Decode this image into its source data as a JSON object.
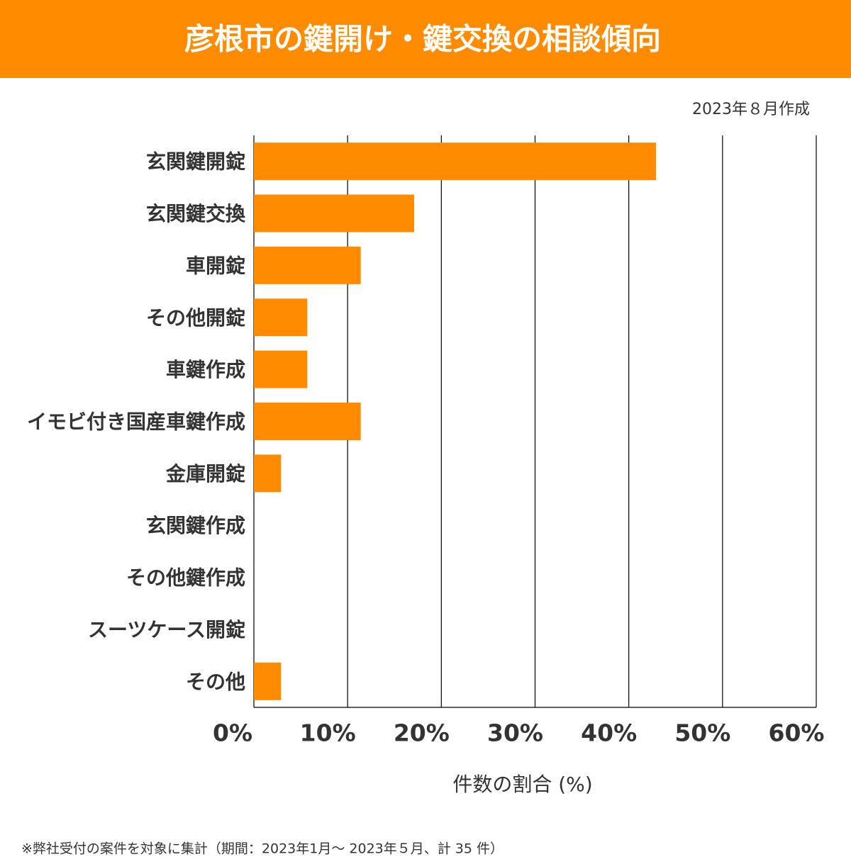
{
  "chart_data": {
    "type": "bar",
    "orientation": "horizontal",
    "title": "彦根市の鍵開け・鍵交換の相談傾向",
    "subtitle": "2023年８月作成",
    "x_label": "件数の割合 (%)",
    "note": "※弊社受付の案件を対象に集計（期間：2023年1月～ 2023年５月、計 35 件）",
    "categories": [
      "玄関鍵開錠",
      "玄関鍵交換",
      "車開錠",
      "その他開錠",
      "車鍵作成",
      "イモビ付き国産車鍵作成",
      "金庫開錠",
      "玄関鍵作成",
      "その他鍵作成",
      "スーツケース開錠",
      "その他"
    ],
    "values": [
      42.9,
      17.1,
      11.4,
      5.7,
      5.7,
      11.4,
      2.9,
      0,
      0,
      0,
      2.9
    ],
    "color": "#ff8c00",
    "xlim": [
      0,
      60
    ],
    "xticks": [
      {
        "value": 0,
        "label": "0%"
      },
      {
        "value": 10,
        "label": "10%"
      },
      {
        "value": 20,
        "label": "20%"
      },
      {
        "value": 30,
        "label": "30%"
      },
      {
        "value": 40,
        "label": "40%"
      },
      {
        "value": 50,
        "label": "50%"
      },
      {
        "value": 60,
        "label": "60%"
      }
    ],
    "grid": true
  }
}
